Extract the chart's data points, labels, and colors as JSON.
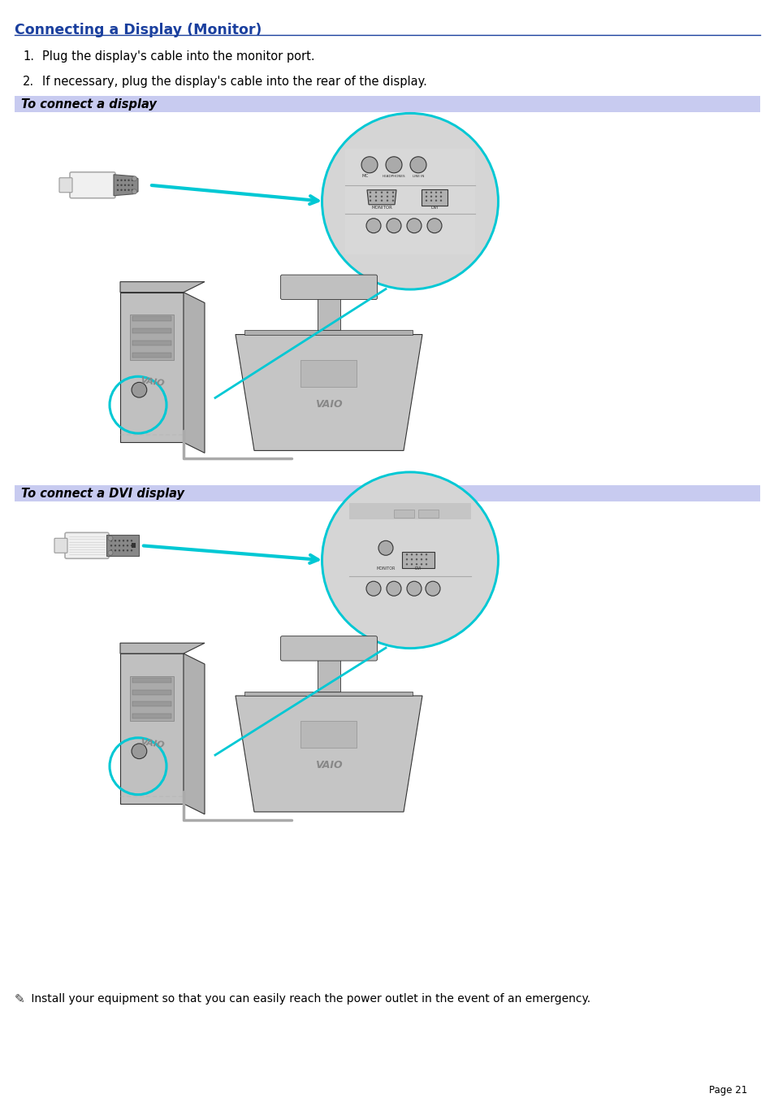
{
  "title": "Connecting a Display (Monitor)",
  "title_color": "#1a3f9e",
  "title_underline_color": "#1a3f9e",
  "bg_color": "#ffffff",
  "body_text_color": "#000000",
  "step1": "Plug the display's cable into the monitor port.",
  "step2": "If necessary, plug the display's cable into the rear of the display.",
  "section1_label": "To connect a display",
  "section2_label": "To connect a DVI display",
  "section_label_color": "#000000",
  "section_label_bg": "#c8cbf0",
  "footer_note_symbol": "⨍",
  "footer_note_text": " Install your equipment so that you can easily reach the power outlet in the event of an emergency.",
  "page_num": "Page 21",
  "title_fontsize": 12.5,
  "body_fontsize": 10.5,
  "label_fontsize": 10.5,
  "cyan": "#00c8d4",
  "dark_gray": "#555555",
  "mid_gray": "#999999",
  "light_gray": "#cccccc",
  "vlight_gray": "#e8e8e8",
  "line_color": "#333333"
}
